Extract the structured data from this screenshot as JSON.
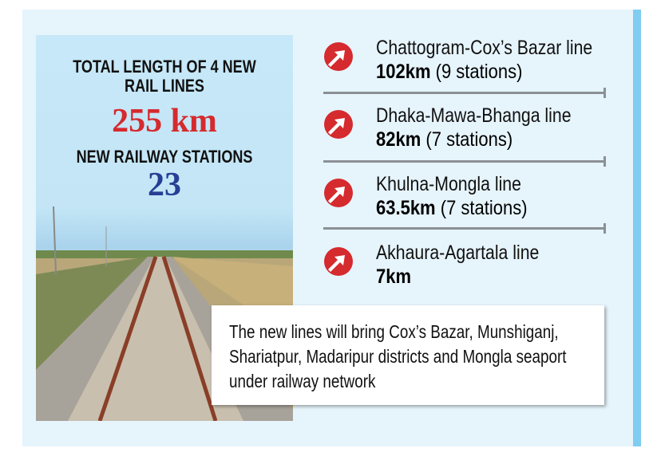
{
  "summary": {
    "total_length_heading": "TOTAL LENGTH OF 4 NEW RAIL LINES",
    "total_length_value": "255 km",
    "stations_heading": "NEW RAILWAY STATIONS",
    "stations_value": "23"
  },
  "lines": [
    {
      "name": "Chattogram-Cox’s Bazar line",
      "length": "102km",
      "stations": "(9 stations)"
    },
    {
      "name": "Dhaka-Mawa-Bhanga line",
      "length": "82km",
      "stations": "(7 stations)"
    },
    {
      "name": "Khulna-Mongla line",
      "length": "63.5km",
      "stations": "(7 stations)"
    },
    {
      "name": "Akhaura-Agartala line",
      "length": "7km",
      "stations": ""
    }
  ],
  "caption": "The new lines will bring Cox’s Bazar, Munshiganj, Shariatpur, Madaripur districts and Mongla seaport under railway network",
  "icon": "arrow-up-right-circle-icon",
  "colors": {
    "accent_red": "#d52a2e",
    "accent_blue": "#263f94",
    "background": "#e6f4fc",
    "side_bar": "#7fcdf0"
  }
}
